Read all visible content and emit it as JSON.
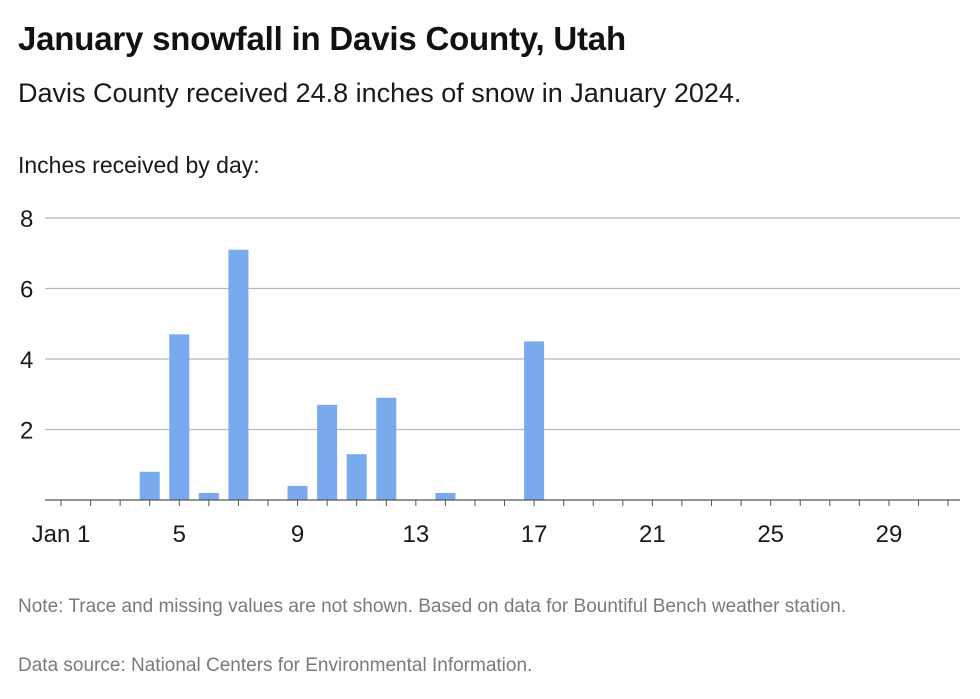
{
  "header": {
    "title": "January snowfall in Davis County, Utah",
    "subtitle": "Davis County received 24.8 inches of snow in January 2024.",
    "axis_caption": "Inches received by day:"
  },
  "footer": {
    "note": "Note: Trace and missing values are not shown. Based on data for Bountiful Bench weather station.",
    "source": "Data source: National Centers for Environmental Information."
  },
  "colors": {
    "bar": "#7aaaee",
    "grid": "#b8b8b8",
    "axis": "#555555",
    "text": "#1a1a1a",
    "muted": "#7a7a7a"
  },
  "chart_data": {
    "type": "bar",
    "title": "January snowfall in Davis County, Utah",
    "subtitle": "Davis County received 24.8 inches of snow in January 2024.",
    "ylabel": "Inches received by day:",
    "xlabel": "",
    "xlim": [
      1,
      31
    ],
    "ylim": [
      0,
      8
    ],
    "yticks": [
      2,
      4,
      6,
      8
    ],
    "xticks": [
      {
        "day": 1,
        "label": "Jan 1"
      },
      {
        "day": 5,
        "label": "5"
      },
      {
        "day": 9,
        "label": "9"
      },
      {
        "day": 13,
        "label": "13"
      },
      {
        "day": 17,
        "label": "17"
      },
      {
        "day": 21,
        "label": "21"
      },
      {
        "day": 25,
        "label": "25"
      },
      {
        "day": 29,
        "label": "29"
      }
    ],
    "grid": true,
    "series": [
      {
        "values": [
          {
            "day": 4,
            "value": 0.8
          },
          {
            "day": 5,
            "value": 4.7
          },
          {
            "day": 6,
            "value": 0.2
          },
          {
            "day": 7,
            "value": 7.1
          },
          {
            "day": 9,
            "value": 0.4
          },
          {
            "day": 10,
            "value": 2.7
          },
          {
            "day": 11,
            "value": 1.3
          },
          {
            "day": 12,
            "value": 2.9
          },
          {
            "day": 14,
            "value": 0.2
          },
          {
            "day": 17,
            "value": 4.5
          }
        ]
      }
    ]
  }
}
